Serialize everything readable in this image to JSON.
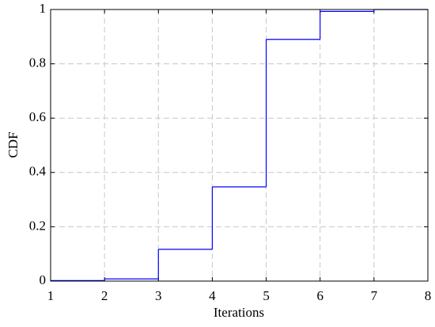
{
  "chart_data": {
    "type": "step",
    "xlabel": "Iterations",
    "ylabel": "CDF",
    "x": [
      1,
      2,
      3,
      4,
      5,
      6,
      7,
      8
    ],
    "series": [
      {
        "color": "#0000ff",
        "values": [
          0.002,
          0.008,
          0.117,
          0.347,
          0.89,
          0.993,
          1,
          1
        ]
      }
    ],
    "xlim": [
      1,
      8
    ],
    "xticks": [
      1,
      2,
      3,
      4,
      5,
      6,
      7,
      8
    ],
    "ylim": [
      0,
      1
    ],
    "yticks": [
      0,
      0.2,
      0.4,
      0.6,
      0.8,
      1
    ],
    "grid": true
  }
}
